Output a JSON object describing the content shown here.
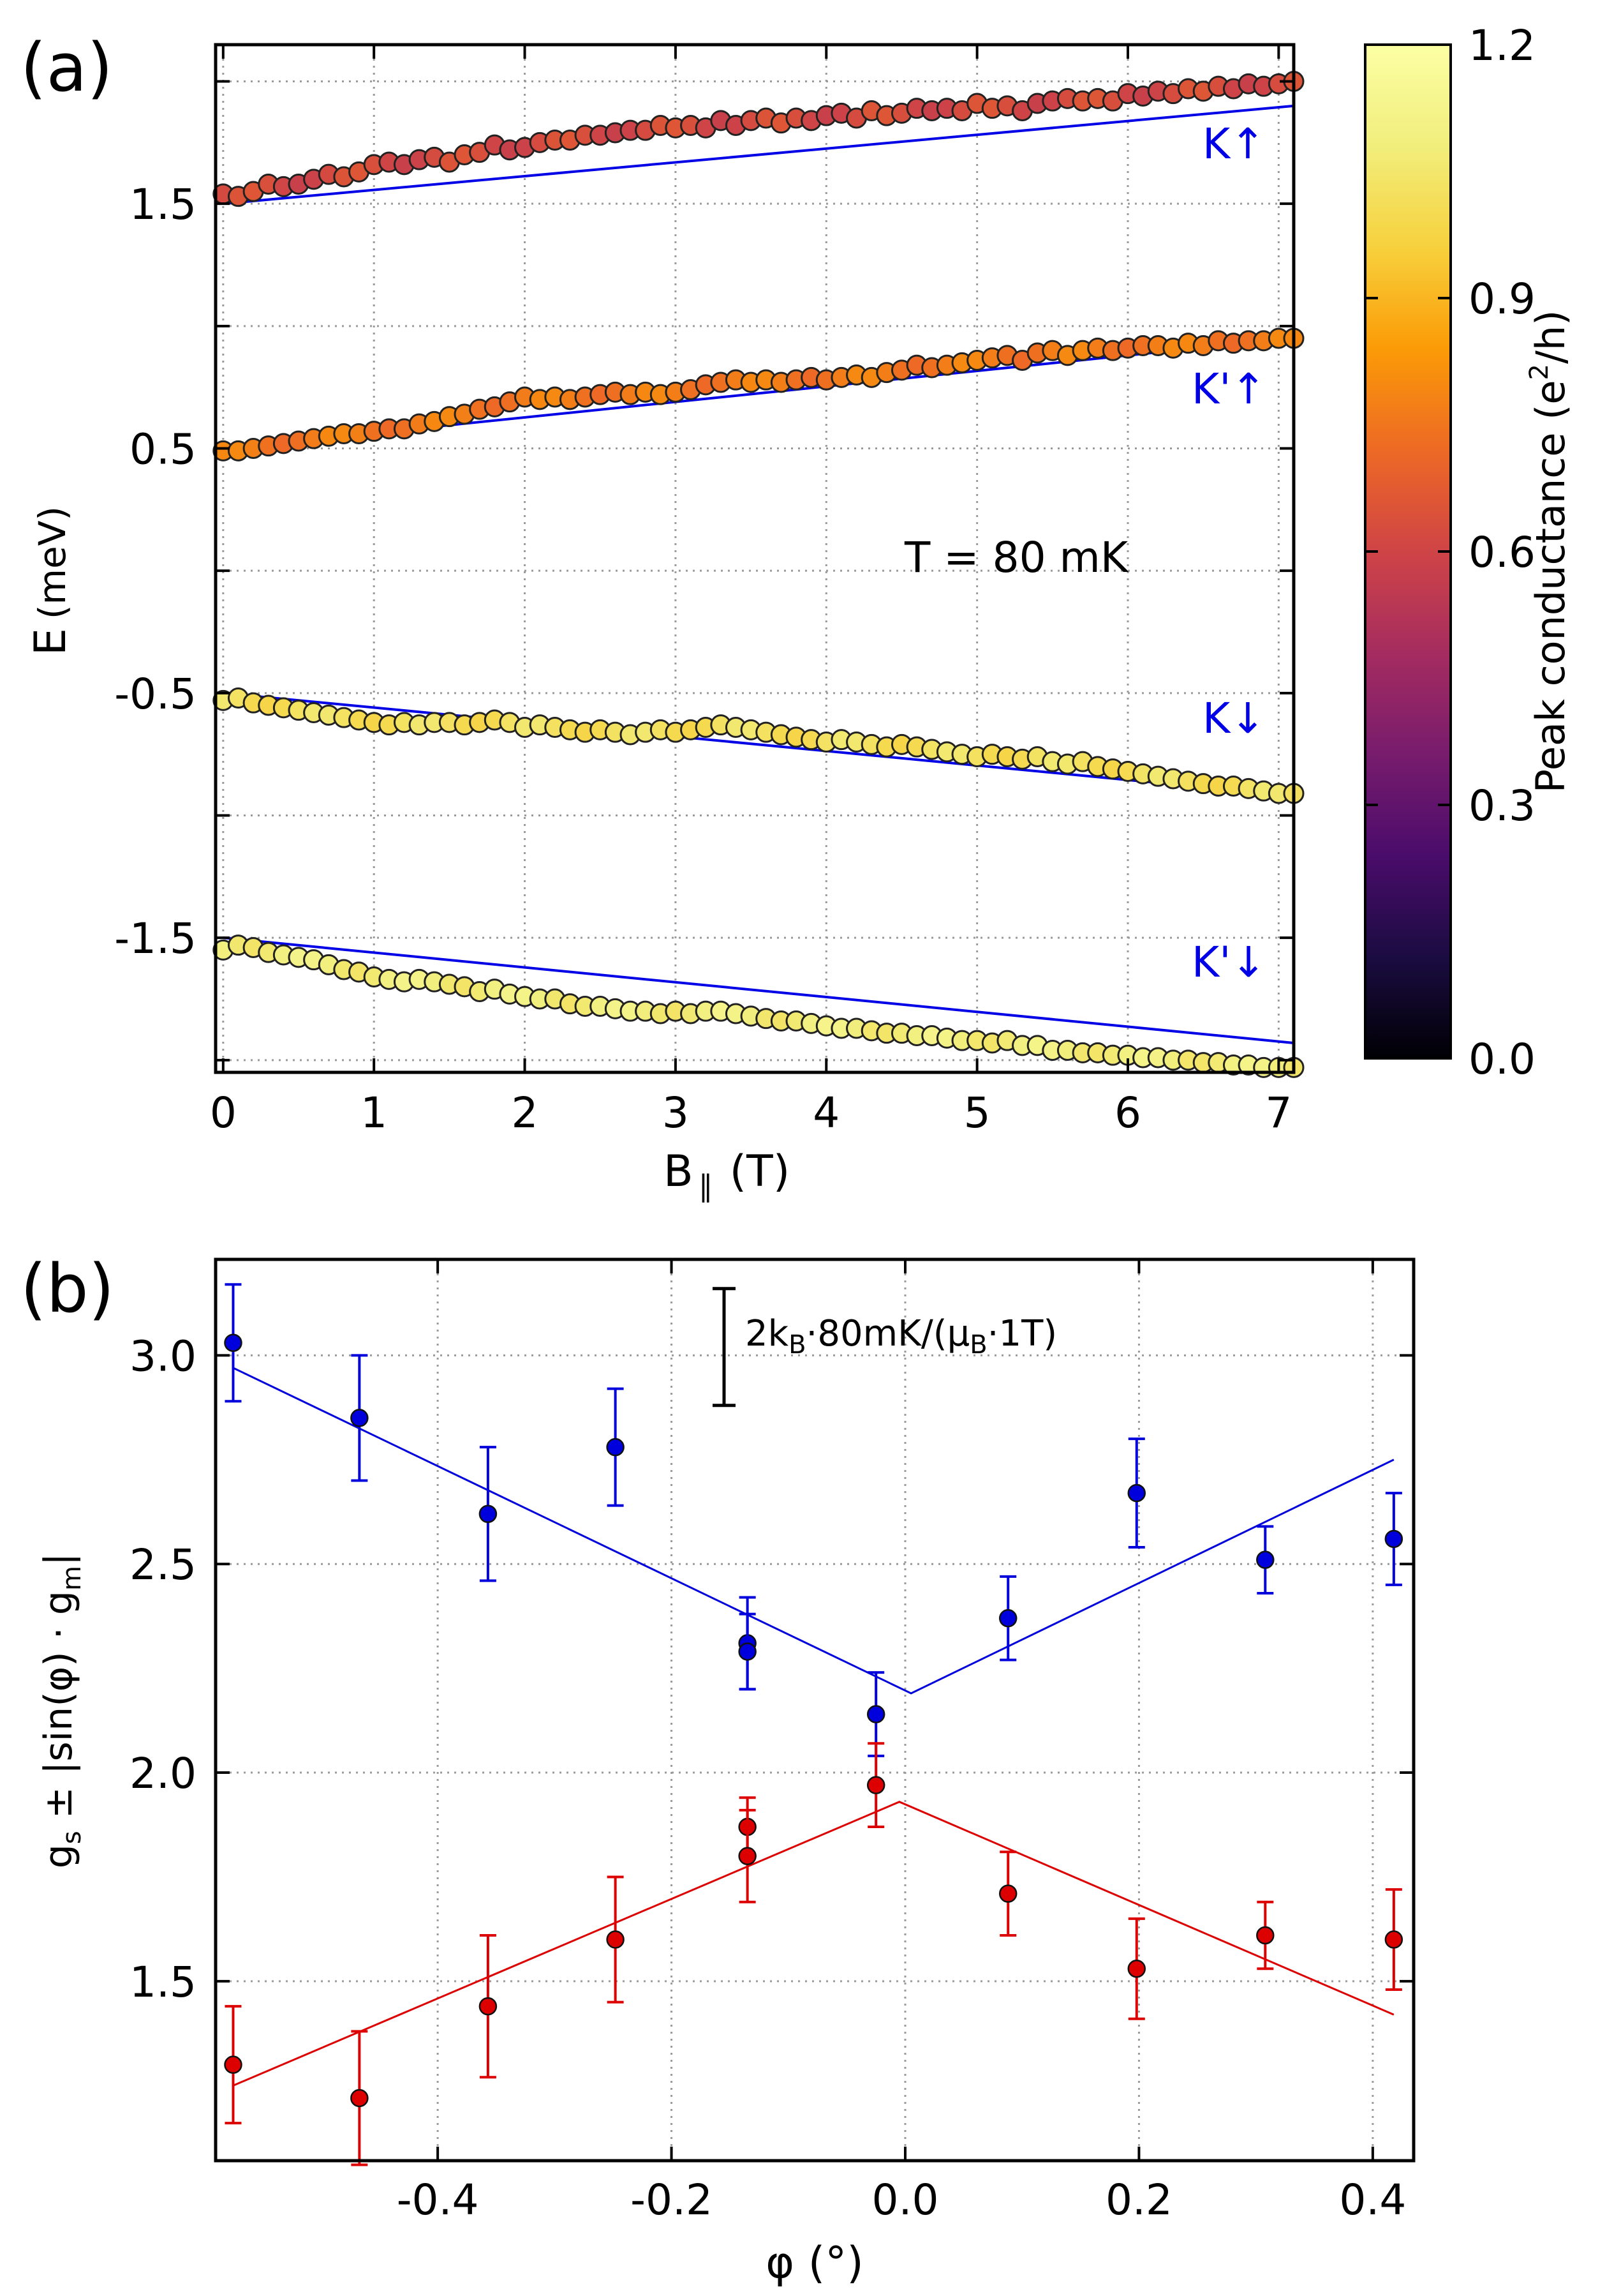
{
  "figure": {
    "panels": [
      "(a)",
      "(b)"
    ]
  },
  "chart_data": [
    {
      "type": "scatter",
      "panel_label": "(a)",
      "title": "",
      "xlabel": "B",
      "xlabel_sub": "∥",
      "xlabel_unit": "(T)",
      "ylabel": "E",
      "ylabel_unit": "(meV)",
      "xlim": [
        -0.05,
        7.1
      ],
      "ylim": [
        -2.05,
        2.15
      ],
      "xticks": [
        0,
        1,
        2,
        3,
        4,
        5,
        6,
        7
      ],
      "xtick_labels": [
        "0",
        "1",
        "2",
        "3",
        "4",
        "5",
        "6",
        "7"
      ],
      "yticks": [
        -1.5,
        -0.5,
        0.5,
        1.5
      ],
      "ytick_labels": [
        "-1.5",
        "-0.5",
        "0.5",
        "1.5"
      ],
      "grid": true,
      "annotation": "T = 80 mK",
      "colorbar": {
        "label": "Peak conductance (e",
        "label_sup": "2",
        "label_end": "/h)",
        "range": [
          0.0,
          1.2
        ],
        "ticks": [
          "0.0",
          "0.3",
          "0.6",
          "0.9",
          "1.2"
        ],
        "colormap": "inferno"
      },
      "x": [
        0.0,
        0.1,
        0.2,
        0.3,
        0.4,
        0.5,
        0.6,
        0.7,
        0.8,
        0.9,
        1.0,
        1.1,
        1.2,
        1.3,
        1.4,
        1.5,
        1.6,
        1.7,
        1.8,
        1.9,
        2.0,
        2.1,
        2.2,
        2.3,
        2.4,
        2.5,
        2.6,
        2.7,
        2.8,
        2.9,
        3.0,
        3.1,
        3.2,
        3.3,
        3.4,
        3.5,
        3.6,
        3.7,
        3.8,
        3.9,
        4.0,
        4.1,
        4.2,
        4.3,
        4.4,
        4.5,
        4.6,
        4.7,
        4.8,
        4.9,
        5.0,
        5.1,
        5.2,
        5.3,
        5.4,
        5.5,
        5.6,
        5.7,
        5.8,
        5.9,
        6.0,
        6.1,
        6.2,
        6.3,
        6.4,
        6.5,
        6.6,
        6.7,
        6.8,
        6.9,
        7.0,
        7.1
      ],
      "series": [
        {
          "name": "K↑",
          "state_label": "K↑",
          "fit": {
            "x": [
              0,
              7.1
            ],
            "y": [
              1.5,
              1.9
            ]
          },
          "base": [
            1.54,
            1.53,
            1.55,
            1.58,
            1.57,
            1.58,
            1.6,
            1.62,
            1.61,
            1.63,
            1.66,
            1.67,
            1.66,
            1.68,
            1.69,
            1.67,
            1.7,
            1.71,
            1.74,
            1.72,
            1.73,
            1.75,
            1.76,
            1.76,
            1.78,
            1.78,
            1.79,
            1.8,
            1.8,
            1.82,
            1.81,
            1.82,
            1.81,
            1.84,
            1.82,
            1.84,
            1.85,
            1.83,
            1.85,
            1.84,
            1.86,
            1.87,
            1.85,
            1.88,
            1.86,
            1.87,
            1.89,
            1.88,
            1.89,
            1.88,
            1.91,
            1.89,
            1.9,
            1.88,
            1.91,
            1.92,
            1.93,
            1.92,
            1.93,
            1.92,
            1.95,
            1.94,
            1.96,
            1.95,
            1.97,
            1.96,
            1.98,
            1.97,
            1.99,
            1.98,
            1.99,
            2.0
          ],
          "conductance": 0.62
        },
        {
          "name": "K'↑",
          "state_label": "K'↑",
          "fit": {
            "x": [
              0,
              7.1
            ],
            "y": [
              0.5,
              0.95
            ]
          },
          "base": [
            0.49,
            0.49,
            0.5,
            0.51,
            0.52,
            0.53,
            0.54,
            0.55,
            0.56,
            0.56,
            0.57,
            0.58,
            0.58,
            0.6,
            0.61,
            0.63,
            0.64,
            0.66,
            0.67,
            0.69,
            0.71,
            0.7,
            0.71,
            0.7,
            0.71,
            0.72,
            0.73,
            0.72,
            0.73,
            0.72,
            0.73,
            0.74,
            0.76,
            0.77,
            0.78,
            0.77,
            0.78,
            0.77,
            0.78,
            0.79,
            0.78,
            0.79,
            0.8,
            0.79,
            0.81,
            0.82,
            0.84,
            0.83,
            0.84,
            0.85,
            0.86,
            0.87,
            0.88,
            0.86,
            0.89,
            0.9,
            0.88,
            0.9,
            0.91,
            0.9,
            0.91,
            0.92,
            0.92,
            0.91,
            0.93,
            0.92,
            0.94,
            0.93,
            0.94,
            0.94,
            0.95,
            0.95
          ],
          "conductance": 0.76
        },
        {
          "name": "K↓",
          "state_label": "K↓",
          "fit": {
            "x": [
              0,
              7.1
            ],
            "y": [
              -0.5,
              -0.92
            ]
          },
          "base": [
            -0.53,
            -0.52,
            -0.54,
            -0.55,
            -0.56,
            -0.57,
            -0.58,
            -0.59,
            -0.6,
            -0.61,
            -0.62,
            -0.63,
            -0.62,
            -0.63,
            -0.62,
            -0.62,
            -0.63,
            -0.62,
            -0.61,
            -0.62,
            -0.64,
            -0.63,
            -0.64,
            -0.65,
            -0.66,
            -0.65,
            -0.66,
            -0.67,
            -0.66,
            -0.65,
            -0.66,
            -0.65,
            -0.64,
            -0.63,
            -0.64,
            -0.65,
            -0.66,
            -0.67,
            -0.68,
            -0.69,
            -0.7,
            -0.69,
            -0.7,
            -0.71,
            -0.72,
            -0.71,
            -0.72,
            -0.73,
            -0.74,
            -0.75,
            -0.76,
            -0.75,
            -0.76,
            -0.77,
            -0.76,
            -0.78,
            -0.79,
            -0.78,
            -0.8,
            -0.81,
            -0.82,
            -0.83,
            -0.84,
            -0.85,
            -0.86,
            -0.87,
            -0.88,
            -0.88,
            -0.89,
            -0.9,
            -0.91,
            -0.91
          ],
          "conductance": 1.02
        },
        {
          "name": "K'↓",
          "state_label": "K'↓",
          "fit": {
            "x": [
              0,
              7.1
            ],
            "y": [
              -1.5,
              -1.93
            ]
          },
          "base": [
            -1.55,
            -1.53,
            -1.54,
            -1.56,
            -1.57,
            -1.58,
            -1.59,
            -1.61,
            -1.63,
            -1.64,
            -1.66,
            -1.67,
            -1.68,
            -1.67,
            -1.68,
            -1.69,
            -1.7,
            -1.72,
            -1.71,
            -1.73,
            -1.74,
            -1.75,
            -1.75,
            -1.77,
            -1.78,
            -1.78,
            -1.79,
            -1.8,
            -1.8,
            -1.81,
            -1.8,
            -1.81,
            -1.8,
            -1.8,
            -1.81,
            -1.82,
            -1.83,
            -1.84,
            -1.84,
            -1.85,
            -1.86,
            -1.87,
            -1.87,
            -1.88,
            -1.89,
            -1.89,
            -1.9,
            -1.9,
            -1.91,
            -1.92,
            -1.92,
            -1.93,
            -1.92,
            -1.94,
            -1.94,
            -1.96,
            -1.96,
            -1.97,
            -1.97,
            -1.98,
            -1.98,
            -1.99,
            -1.99,
            -2.0,
            -2.0,
            -2.01,
            -2.01,
            -2.02,
            -2.02,
            -2.03,
            -2.03,
            -2.03
          ],
          "conductance": 1.08
        }
      ]
    },
    {
      "type": "scatter",
      "panel_label": "(b)",
      "title": "",
      "xlabel": "φ (°)",
      "ylabel": "g",
      "ylabel_sub": "s",
      "ylabel_mid": " ± |sin(φ) · g",
      "ylabel_sub2": "m",
      "ylabel_end": "|",
      "xlim": [
        -0.59,
        0.435
      ],
      "ylim": [
        1.07,
        3.23
      ],
      "xticks": [
        -0.4,
        -0.2,
        0.0,
        0.2,
        0.4
      ],
      "xtick_labels": [
        "-0.4",
        "-0.2",
        "0.0",
        "0.2",
        "0.4"
      ],
      "yticks": [
        1.5,
        2.0,
        2.5,
        3.0
      ],
      "ytick_labels": [
        "1.5",
        "2.0",
        "2.5",
        "3.0"
      ],
      "grid": true,
      "scale_bar": {
        "text_pre": "2k",
        "sub1": "B",
        "text_mid": "·80mK/(μ",
        "sub2": "B",
        "text_end": "·1T)",
        "y_range": [
          2.88,
          3.16
        ]
      },
      "series": [
        {
          "name": "g_s + |sin(φ)·g_m|",
          "color": "#0000dd",
          "x": [
            -0.575,
            -0.467,
            -0.357,
            -0.248,
            -0.135,
            -0.135,
            -0.025,
            0.088,
            0.198,
            0.308,
            0.418
          ],
          "y": [
            3.03,
            2.85,
            2.62,
            2.78,
            2.31,
            2.29,
            2.14,
            2.37,
            2.67,
            2.51,
            2.56
          ],
          "yerr": [
            0.14,
            0.15,
            0.16,
            0.14,
            0.11,
            0.09,
            0.1,
            0.1,
            0.13,
            0.08,
            0.11
          ],
          "fit": {
            "x": [
              -0.575,
              0.005,
              0.418
            ],
            "y": [
              2.97,
              2.19,
              2.75
            ]
          }
        },
        {
          "name": "g_s − |sin(φ)·g_m|",
          "color": "#dd0000",
          "x": [
            -0.575,
            -0.467,
            -0.357,
            -0.248,
            -0.135,
            -0.135,
            -0.025,
            0.088,
            0.198,
            0.308,
            0.418
          ],
          "y": [
            1.3,
            1.22,
            1.44,
            1.6,
            1.87,
            1.8,
            1.97,
            1.71,
            1.53,
            1.61,
            1.6
          ],
          "yerr": [
            0.14,
            0.16,
            0.17,
            0.15,
            0.07,
            0.11,
            0.1,
            0.1,
            0.12,
            0.08,
            0.12
          ],
          "fit": {
            "x": [
              -0.575,
              -0.005,
              0.418
            ],
            "y": [
              1.25,
              1.93,
              1.42
            ]
          }
        }
      ]
    }
  ]
}
